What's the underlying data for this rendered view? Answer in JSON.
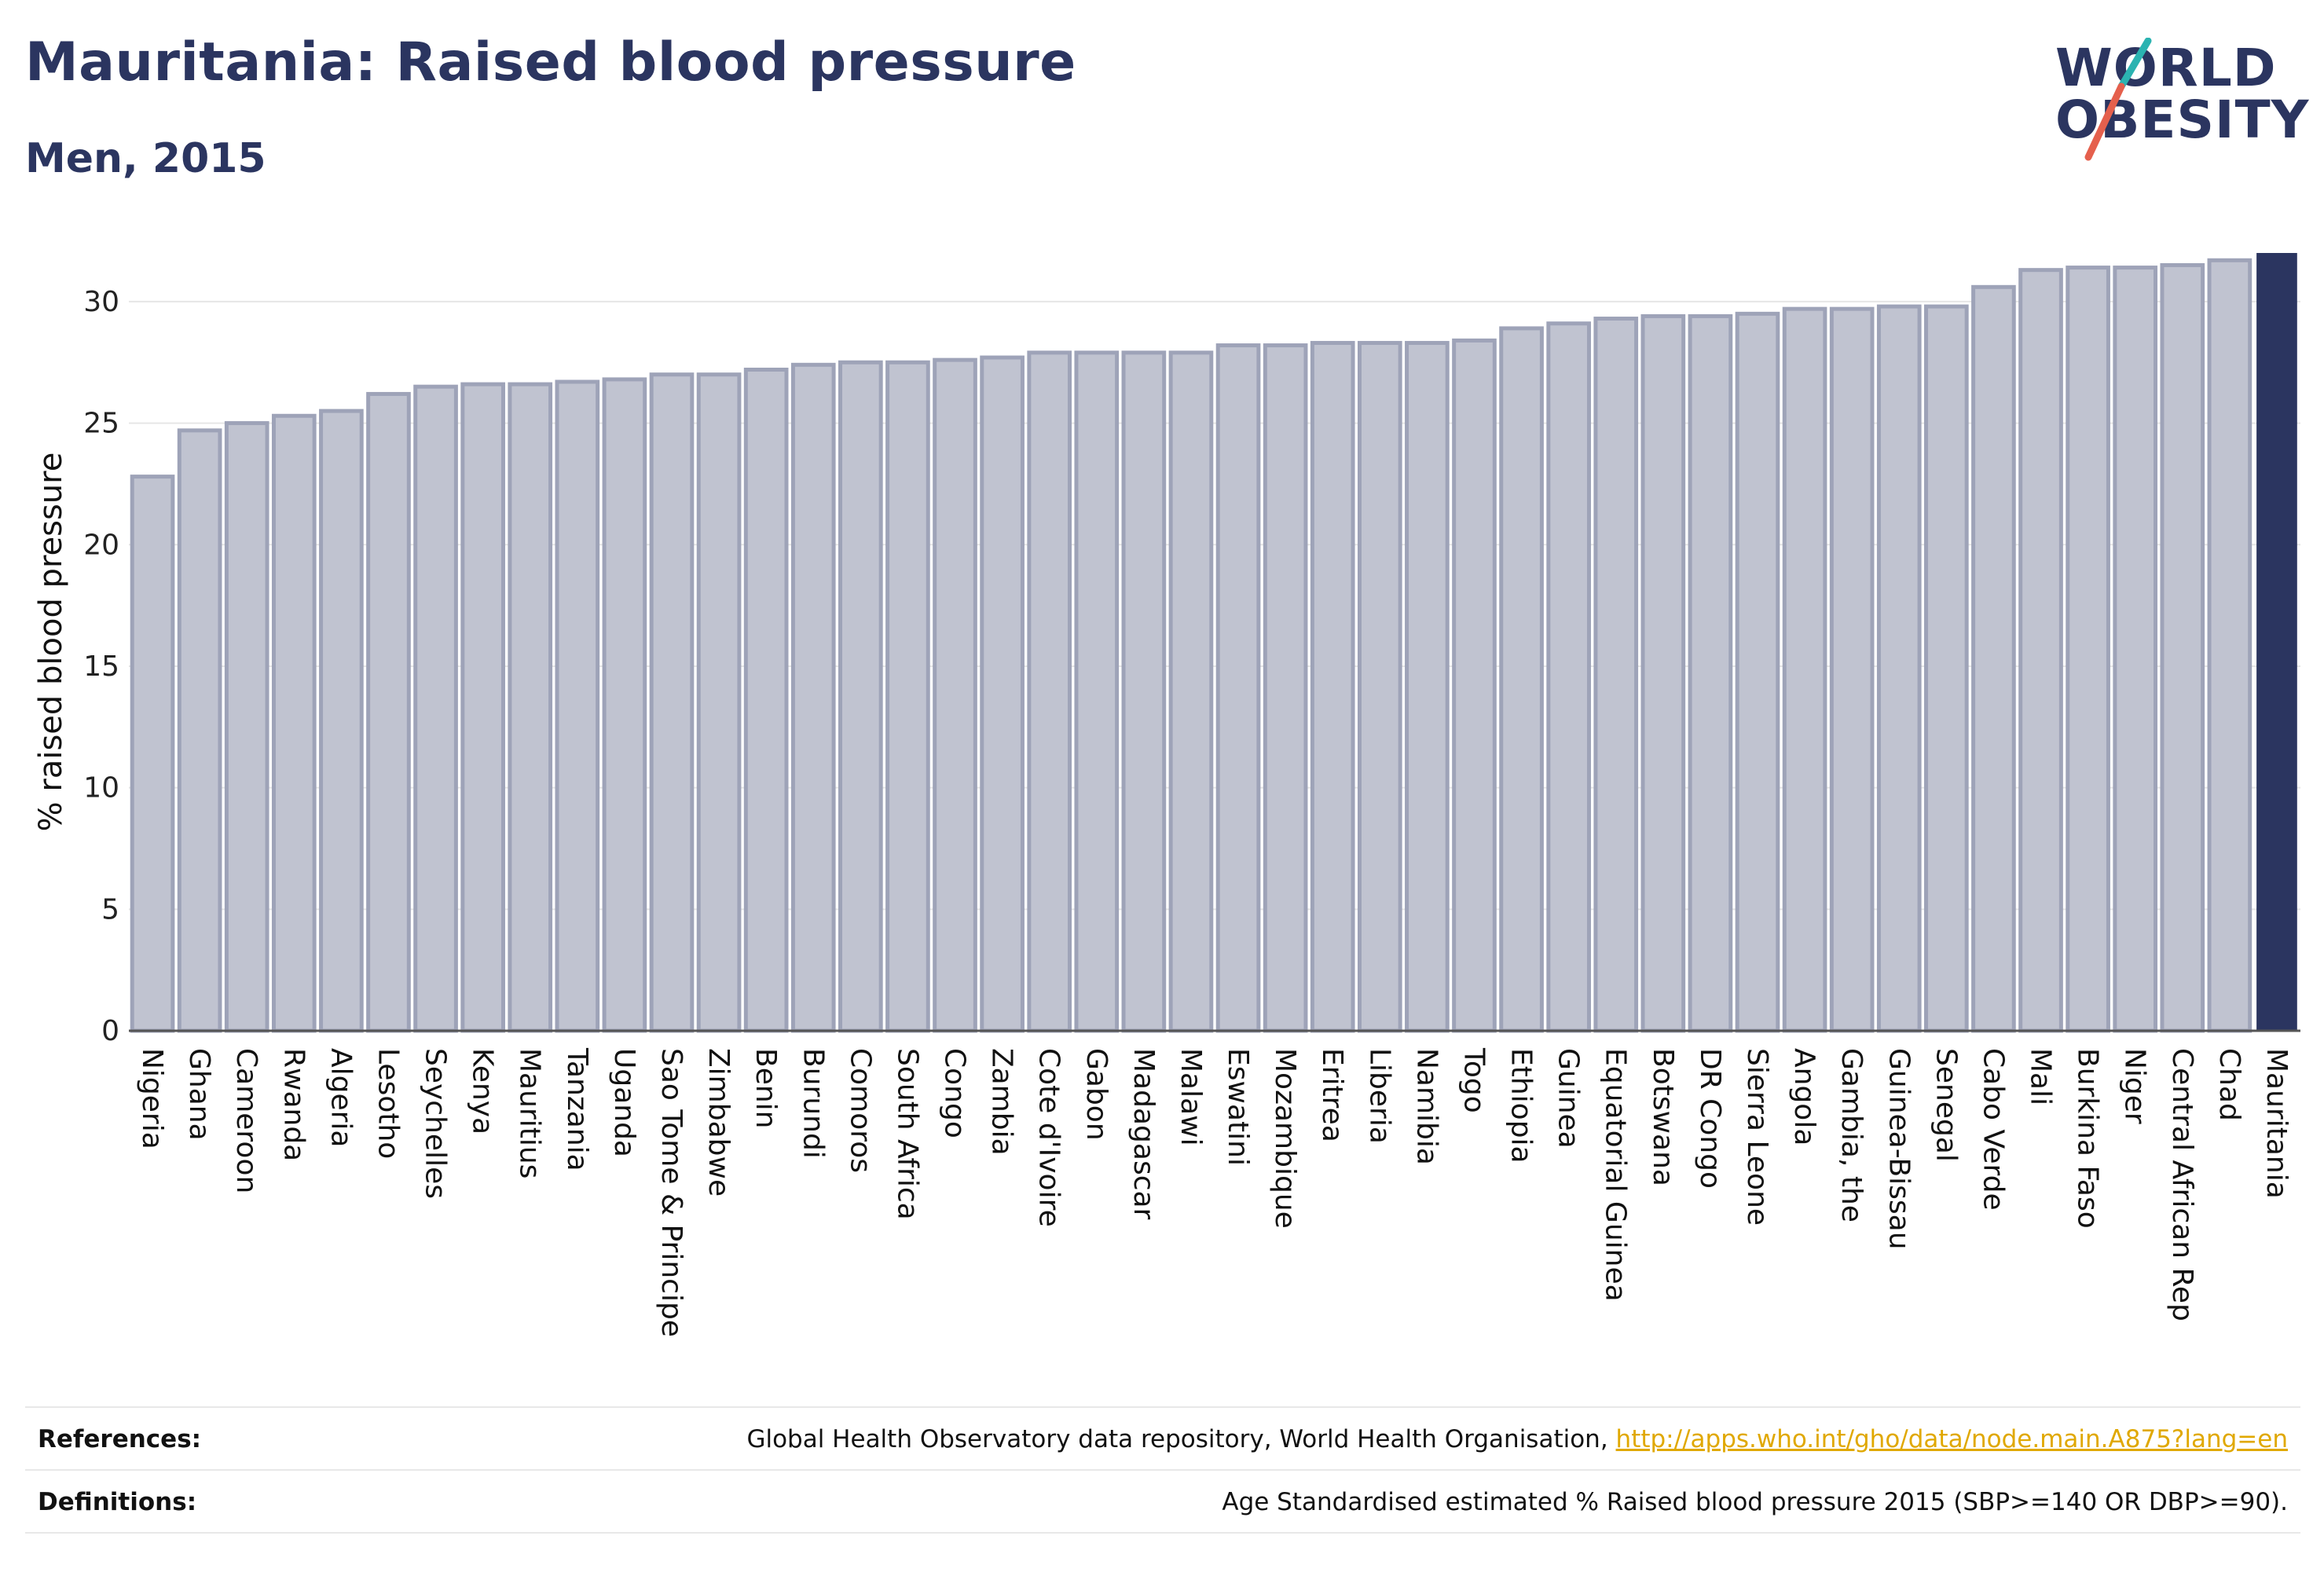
{
  "header": {
    "title": "Mauritania: Raised blood pressure",
    "subtitle": "Men, 2015"
  },
  "logo": {
    "line1": "WORLD",
    "line2": "OBESITY",
    "slash_color_teal": "#2bb3b1",
    "slash_color_red": "#e5604d",
    "text_color": "#2b3560"
  },
  "colors": {
    "bar_fill": "#c0c3d0",
    "bar_stroke": "#9ea3b8",
    "highlight_fill": "#2b3560",
    "title": "#2b3560",
    "link": "#e0a800"
  },
  "chart_data": {
    "type": "bar",
    "title": "Mauritania: Raised blood pressure",
    "subtitle": "Men, 2015",
    "xlabel": "",
    "ylabel": "% raised blood pressure",
    "ylim": [
      0,
      32
    ],
    "yticks": [
      0,
      5,
      10,
      15,
      20,
      25,
      30
    ],
    "grid": true,
    "highlight": "Mauritania",
    "categories": [
      "Nigeria",
      "Ghana",
      "Cameroon",
      "Rwanda",
      "Algeria",
      "Lesotho",
      "Seychelles",
      "Kenya",
      "Mauritius",
      "Tanzania",
      "Uganda",
      "Sao Tome & Principe",
      "Zimbabwe",
      "Benin",
      "Burundi",
      "Comoros",
      "South Africa",
      "Congo",
      "Zambia",
      "Cote d'Ivoire",
      "Gabon",
      "Madagascar",
      "Malawi",
      "Eswatini",
      "Mozambique",
      "Eritrea",
      "Liberia",
      "Namibia",
      "Togo",
      "Ethiopia",
      "Guinea",
      "Equatorial Guinea",
      "Botswana",
      "DR Congo",
      "Sierra Leone",
      "Angola",
      "Gambia, the",
      "Guinea-Bissau",
      "Senegal",
      "Cabo Verde",
      "Mali",
      "Burkina Faso",
      "Niger",
      "Central African Rep",
      "Chad",
      "Mauritania"
    ],
    "values": [
      22.8,
      24.7,
      25.0,
      25.3,
      25.5,
      26.2,
      26.5,
      26.6,
      26.6,
      26.7,
      26.8,
      27.0,
      27.0,
      27.2,
      27.4,
      27.5,
      27.5,
      27.6,
      27.7,
      27.9,
      27.9,
      27.9,
      27.9,
      28.2,
      28.2,
      28.3,
      28.3,
      28.3,
      28.4,
      28.9,
      29.1,
      29.3,
      29.4,
      29.4,
      29.5,
      29.7,
      29.7,
      29.8,
      29.8,
      30.6,
      31.3,
      31.4,
      31.4,
      31.5,
      31.7,
      32.0
    ]
  },
  "footer": {
    "references_label": "References:",
    "references_text": "Global Health Observatory data repository, World Health Organisation,",
    "references_link": "http://apps.who.int/gho/data/node.main.A875?lang=en",
    "definitions_label": "Definitions:",
    "definitions_text": "Age Standardised estimated % Raised blood pressure 2015 (SBP>=140 OR DBP>=90)."
  }
}
